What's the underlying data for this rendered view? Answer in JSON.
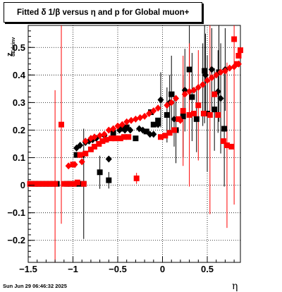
{
  "chart_data": {
    "type": "scatter",
    "title": "Fitted δ 1/β versus η and p for Global muon+",
    "xlabel": "η",
    "ylabel": "z",
    "ylabel_sub": "dEdxinv",
    "xlim": [
      -1.5,
      0.87
    ],
    "ylim": [
      -0.28,
      0.58
    ],
    "x_ticks": [
      -1.5,
      -1,
      -0.5,
      0,
      0.5
    ],
    "x_tick_labels": [
      "−1.5",
      "−1",
      "−0.5",
      "0",
      "0.5"
    ],
    "y_ticks": [
      -0.2,
      -0.1,
      0,
      0.1,
      0.2,
      0.3,
      0.4,
      0.5
    ],
    "y_tick_labels": [
      "−0.2",
      "−0.1",
      "0",
      "0.1",
      "0.2",
      "0.3",
      "0.4",
      "0.5"
    ],
    "grid": true,
    "colors": {
      "black": "#000000",
      "red": "#ff0000"
    },
    "series": [
      {
        "color": "#000000",
        "marker": "square",
        "points": [
          {
            "x": -1.46,
            "y": 0.005
          },
          {
            "x": -1.42,
            "y": 0.005
          },
          {
            "x": -1.38,
            "y": 0.005
          },
          {
            "x": -1.34,
            "y": 0.005
          },
          {
            "x": -1.3,
            "y": 0.005
          },
          {
            "x": -1.26,
            "y": 0.005
          },
          {
            "x": -1.22,
            "y": 0.005
          },
          {
            "x": -1.18,
            "y": 0.005
          },
          {
            "x": -1.07,
            "y": 0.005
          },
          {
            "x": -1.03,
            "y": 0.005
          },
          {
            "x": -0.98,
            "y": 0.005
          },
          {
            "x": -0.93,
            "y": 0.005
          },
          {
            "x": -0.88,
            "y": 0.005,
            "err": 0.2
          },
          {
            "x": -0.96,
            "y": 0.11
          },
          {
            "x": -0.9,
            "y": 0.11
          },
          {
            "x": -0.7,
            "y": 0.047,
            "err": 0.06
          },
          {
            "x": -0.6,
            "y": 0.018,
            "err": 0.03
          },
          {
            "x": -0.55,
            "y": 0.19
          },
          {
            "x": -0.45,
            "y": 0.205
          },
          {
            "x": -0.4,
            "y": 0.21
          },
          {
            "x": -0.3,
            "y": 0.17
          },
          {
            "x": -0.18,
            "y": 0.195
          },
          {
            "x": -0.13,
            "y": 0.265
          },
          {
            "x": -0.1,
            "y": 0.22
          },
          {
            "x": -0.05,
            "y": 0.235
          },
          {
            "x": 0.05,
            "y": 0.255,
            "err": 0.1
          },
          {
            "x": 0.1,
            "y": 0.33,
            "err": 0.14
          },
          {
            "x": 0.15,
            "y": 0.2,
            "err": 0.12
          },
          {
            "x": 0.23,
            "y": 0.25,
            "err": 0.15
          },
          {
            "x": 0.3,
            "y": 0.42,
            "err": 0.17
          },
          {
            "x": 0.33,
            "y": 0.32,
            "err": 0.16
          },
          {
            "x": 0.38,
            "y": 0.24,
            "err": 0.12
          },
          {
            "x": 0.47,
            "y": 0.415,
            "err": 0.19
          },
          {
            "x": 0.5,
            "y": 0.26,
            "err": 0.21
          },
          {
            "x": 0.58,
            "y": 0.275,
            "err": 0.15
          },
          {
            "x": 0.63,
            "y": 0.41,
            "err": 0.18
          },
          {
            "x": 0.69,
            "y": 0.205,
            "err": 0.21
          }
        ]
      },
      {
        "color": "#000000",
        "marker": "diamond",
        "points": [
          {
            "x": -0.96,
            "y": 0.135
          },
          {
            "x": -0.92,
            "y": 0.145
          },
          {
            "x": -0.86,
            "y": 0.155
          },
          {
            "x": -0.82,
            "y": 0.16
          },
          {
            "x": -0.78,
            "y": 0.165
          },
          {
            "x": -0.74,
            "y": 0.17
          },
          {
            "x": -0.65,
            "y": 0.18
          },
          {
            "x": -0.6,
            "y": 0.095
          },
          {
            "x": -0.48,
            "y": 0.2
          },
          {
            "x": -0.42,
            "y": 0.2
          },
          {
            "x": -0.36,
            "y": 0.2
          },
          {
            "x": -0.26,
            "y": 0.205
          },
          {
            "x": -0.22,
            "y": 0.2
          },
          {
            "x": -0.14,
            "y": 0.185
          },
          {
            "x": -0.1,
            "y": 0.185
          },
          {
            "x": -0.05,
            "y": 0.22
          },
          {
            "x": -0.02,
            "y": 0.31,
            "err": 0.1
          },
          {
            "x": 0.08,
            "y": 0.3,
            "err": 0.1
          },
          {
            "x": 0.13,
            "y": 0.24,
            "err": 0.1
          },
          {
            "x": 0.25,
            "y": 0.345,
            "err": 0.15
          },
          {
            "x": 0.45,
            "y": 0.365,
            "err": 0.15
          },
          {
            "x": 0.48,
            "y": 0.4,
            "err": 0.15
          },
          {
            "x": 0.55,
            "y": 0.42,
            "err": 0.15
          },
          {
            "x": 0.62,
            "y": 0.34,
            "err": 0.15
          },
          {
            "x": 0.65,
            "y": 0.315,
            "err": 0.2
          },
          {
            "x": 0.7,
            "y": 0.42,
            "err": 0.15
          }
        ]
      },
      {
        "color": "#ff0000",
        "marker": "square",
        "points": [
          {
            "x": -1.48,
            "y": 0.005
          },
          {
            "x": -1.44,
            "y": 0.005
          },
          {
            "x": -1.4,
            "y": 0.005
          },
          {
            "x": -1.36,
            "y": 0.005
          },
          {
            "x": -1.32,
            "y": 0.005
          },
          {
            "x": -1.28,
            "y": 0.005
          },
          {
            "x": -1.24,
            "y": 0.005
          },
          {
            "x": -1.2,
            "y": 0.005,
            "err": 0.34
          },
          {
            "x": -1.1,
            "y": 0.005
          },
          {
            "x": -1.05,
            "y": 0.005
          },
          {
            "x": -0.99,
            "y": 0.005
          },
          {
            "x": -0.95,
            "y": 0.01
          },
          {
            "x": -0.88,
            "y": 0.005
          },
          {
            "x": -1.13,
            "y": 0.22,
            "err": 0.36
          },
          {
            "x": -1.0,
            "y": 0.075
          },
          {
            "x": -0.92,
            "y": 0.11
          },
          {
            "x": -0.86,
            "y": 0.115
          },
          {
            "x": -0.8,
            "y": 0.13
          },
          {
            "x": -0.76,
            "y": 0.14
          },
          {
            "x": -0.71,
            "y": 0.15
          },
          {
            "x": -0.67,
            "y": 0.16
          },
          {
            "x": -0.63,
            "y": 0.165
          },
          {
            "x": -0.57,
            "y": 0.17
          },
          {
            "x": -0.53,
            "y": 0.17
          },
          {
            "x": -0.47,
            "y": 0.17
          },
          {
            "x": -0.43,
            "y": 0.175
          },
          {
            "x": -0.38,
            "y": 0.175
          },
          {
            "x": -0.29,
            "y": 0.025,
            "err": 0.02
          },
          {
            "x": -0.02,
            "y": 0.175
          },
          {
            "x": 0.03,
            "y": 0.18
          },
          {
            "x": 0.08,
            "y": 0.19
          },
          {
            "x": 0.13,
            "y": 0.2
          },
          {
            "x": 0.18,
            "y": 0.24
          },
          {
            "x": 0.23,
            "y": 0.27,
            "err": 0.2
          },
          {
            "x": 0.3,
            "y": 0.255,
            "err": 0.26
          },
          {
            "x": 0.35,
            "y": 0.26
          },
          {
            "x": 0.4,
            "y": 0.29,
            "err": 0.2
          },
          {
            "x": 0.46,
            "y": 0.26
          },
          {
            "x": 0.53,
            "y": 0.255,
            "err": 0.36
          },
          {
            "x": 0.58,
            "y": 0.33
          },
          {
            "x": 0.62,
            "y": 0.255
          },
          {
            "x": 0.68,
            "y": 0.16
          },
          {
            "x": 0.72,
            "y": 0.145,
            "err": 0.3
          },
          {
            "x": 0.77,
            "y": 0.14
          },
          {
            "x": 0.8,
            "y": 0.53,
            "err": 0.6
          },
          {
            "x": 0.83,
            "y": 0.44
          },
          {
            "x": 0.85,
            "y": 0.47
          },
          {
            "x": 0.87,
            "y": 0.49
          }
        ]
      },
      {
        "color": "#ff0000",
        "marker": "diamond",
        "points": [
          {
            "x": -1.05,
            "y": 0.07
          },
          {
            "x": -0.98,
            "y": 0.075
          },
          {
            "x": -0.9,
            "y": 0.085
          },
          {
            "x": -0.86,
            "y": 0.16
          },
          {
            "x": -0.8,
            "y": 0.17
          },
          {
            "x": -0.76,
            "y": 0.175
          },
          {
            "x": -0.7,
            "y": 0.18
          },
          {
            "x": -0.65,
            "y": 0.185
          },
          {
            "x": -0.6,
            "y": 0.2
          },
          {
            "x": -0.55,
            "y": 0.205
          },
          {
            "x": -0.5,
            "y": 0.215
          },
          {
            "x": -0.45,
            "y": 0.22
          },
          {
            "x": -0.4,
            "y": 0.23
          },
          {
            "x": -0.35,
            "y": 0.235
          },
          {
            "x": -0.3,
            "y": 0.24
          },
          {
            "x": -0.25,
            "y": 0.245
          },
          {
            "x": -0.2,
            "y": 0.25
          },
          {
            "x": -0.15,
            "y": 0.26
          },
          {
            "x": -0.1,
            "y": 0.27
          },
          {
            "x": -0.05,
            "y": 0.28
          },
          {
            "x": 0.05,
            "y": 0.29
          },
          {
            "x": 0.1,
            "y": 0.3
          },
          {
            "x": 0.15,
            "y": 0.315
          },
          {
            "x": 0.2,
            "y": 0.235
          },
          {
            "x": 0.25,
            "y": 0.33
          },
          {
            "x": 0.3,
            "y": 0.34
          },
          {
            "x": 0.35,
            "y": 0.345
          },
          {
            "x": 0.4,
            "y": 0.355
          },
          {
            "x": 0.45,
            "y": 0.365
          },
          {
            "x": 0.5,
            "y": 0.38
          },
          {
            "x": 0.55,
            "y": 0.39
          },
          {
            "x": 0.6,
            "y": 0.4
          },
          {
            "x": 0.65,
            "y": 0.41
          },
          {
            "x": 0.7,
            "y": 0.415
          },
          {
            "x": 0.75,
            "y": 0.425
          },
          {
            "x": 0.8,
            "y": 0.43
          },
          {
            "x": 0.85,
            "y": 0.44
          }
        ]
      }
    ],
    "footer": "Sun Jun 29 06:46:32 2025"
  }
}
